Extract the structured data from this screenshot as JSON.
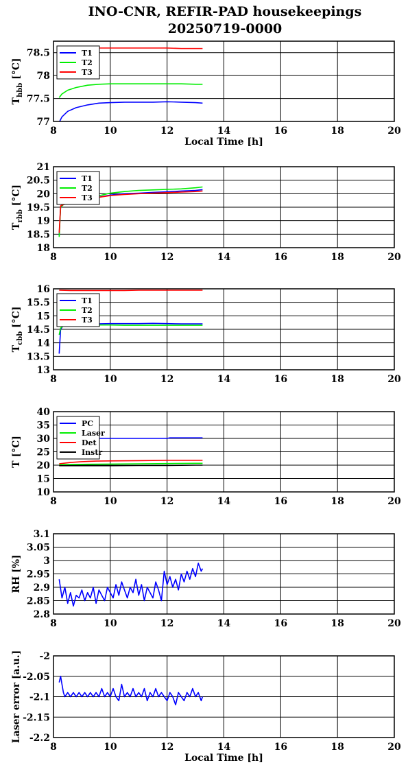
{
  "header": {
    "title_line1": "INO-CNR, REFIR-PAD housekeepings",
    "title_line2": "20250719-0000"
  },
  "colors": {
    "blue": "#0000ff",
    "green": "#00ee00",
    "red": "#ff0000",
    "black": "#000000"
  },
  "chart_data": [
    {
      "type": "line",
      "ylabel": "T_hbb [°C]",
      "ylabel_main": "T",
      "ylabel_sub": "hbb",
      "ylabel_unit": "[°C]",
      "xlabel": "Local Time [h]",
      "xlim": [
        8,
        20
      ],
      "ylim": [
        77,
        78.75
      ],
      "xticks": [
        "8",
        "10",
        "12",
        "14",
        "16",
        "18",
        "20"
      ],
      "yticks": [
        "77",
        "77.5",
        "78",
        "78.5"
      ],
      "grid": true,
      "legend_position": "top-left",
      "series": [
        {
          "name": "T1",
          "color": "#0000ff",
          "x": [
            8.2,
            8.3,
            8.5,
            8.8,
            9.2,
            9.6,
            10.0,
            10.5,
            11.0,
            11.5,
            12.0,
            12.5,
            13.0,
            13.25
          ],
          "y": [
            76.98,
            77.1,
            77.22,
            77.3,
            77.36,
            77.4,
            77.41,
            77.42,
            77.42,
            77.42,
            77.43,
            77.42,
            77.41,
            77.4
          ]
        },
        {
          "name": "T2",
          "color": "#00ee00",
          "x": [
            8.2,
            8.3,
            8.5,
            8.8,
            9.2,
            9.6,
            10.0,
            10.5,
            11.0,
            11.5,
            12.0,
            12.5,
            13.0,
            13.25
          ],
          "y": [
            77.52,
            77.6,
            77.68,
            77.74,
            77.79,
            77.81,
            77.82,
            77.82,
            77.82,
            77.82,
            77.82,
            77.82,
            77.81,
            77.81
          ]
        },
        {
          "name": "T3",
          "color": "#ff0000",
          "x": [
            8.2,
            9.0,
            9.6,
            10.0,
            10.5,
            11.0,
            11.5,
            12.0,
            12.5,
            13.0,
            13.25
          ],
          "y": [
            78.6,
            78.6,
            78.6,
            78.6,
            78.6,
            78.6,
            78.6,
            78.6,
            78.59,
            78.59,
            78.59
          ]
        }
      ]
    },
    {
      "type": "line",
      "ylabel": "T_rbb [°C]",
      "ylabel_main": "T",
      "ylabel_sub": "rbb",
      "ylabel_unit": "[°C]",
      "xlabel": "",
      "xlim": [
        8,
        20
      ],
      "ylim": [
        18,
        21
      ],
      "xticks": [
        "8",
        "10",
        "12",
        "14",
        "16",
        "18",
        "20"
      ],
      "yticks": [
        "18",
        "18.5",
        "19",
        "19.5",
        "20",
        "20.5",
        "21"
      ],
      "grid": true,
      "legend_position": "top-left",
      "series": [
        {
          "name": "T1",
          "color": "#0000ff",
          "x": [
            8.2,
            8.25,
            8.35,
            8.6,
            9.0,
            9.5,
            10.0,
            10.5,
            11.0,
            11.5,
            12.0,
            12.5,
            13.0,
            13.25
          ],
          "y": [
            18.45,
            19.5,
            19.6,
            19.65,
            19.72,
            19.85,
            19.95,
            20.0,
            20.02,
            20.05,
            20.07,
            20.1,
            20.12,
            20.15
          ]
        },
        {
          "name": "T2",
          "color": "#00ee00",
          "x": [
            8.2,
            8.25,
            8.35,
            8.6,
            9.0,
            9.5,
            10.0,
            10.5,
            11.0,
            11.5,
            12.0,
            12.5,
            13.0,
            13.25
          ],
          "y": [
            18.4,
            19.5,
            19.6,
            19.65,
            19.75,
            19.9,
            20.02,
            20.08,
            20.12,
            20.14,
            20.16,
            20.18,
            20.22,
            20.25
          ]
        },
        {
          "name": "T3",
          "color": "#ff0000",
          "x": [
            8.2,
            8.25,
            8.35,
            8.6,
            9.0,
            9.5,
            10.0,
            10.5,
            11.0,
            11.5,
            12.0,
            12.5,
            13.0,
            13.25
          ],
          "y": [
            18.55,
            19.55,
            19.6,
            19.65,
            19.72,
            19.85,
            19.93,
            19.97,
            20.0,
            20.02,
            20.04,
            20.06,
            20.08,
            20.1
          ]
        }
      ]
    },
    {
      "type": "line",
      "ylabel": "T_cbb [°C]",
      "ylabel_main": "T",
      "ylabel_sub": "cbb",
      "ylabel_unit": "[°C]",
      "xlabel": "",
      "xlim": [
        8,
        20
      ],
      "ylim": [
        13,
        16
      ],
      "xticks": [
        "8",
        "10",
        "12",
        "14",
        "16",
        "18",
        "20"
      ],
      "yticks": [
        "13",
        "13.5",
        "14",
        "14.5",
        "15",
        "15.5",
        "16"
      ],
      "grid": true,
      "legend_position": "top-left",
      "series": [
        {
          "name": "T1",
          "color": "#0000ff",
          "x": [
            8.2,
            8.25,
            8.35,
            8.6,
            9.0,
            9.5,
            10.0,
            10.5,
            11.0,
            11.5,
            12.0,
            12.5,
            13.0,
            13.25
          ],
          "y": [
            13.6,
            14.5,
            14.65,
            14.68,
            14.7,
            14.7,
            14.71,
            14.71,
            14.71,
            14.72,
            14.71,
            14.7,
            14.7,
            14.7
          ]
        },
        {
          "name": "T2",
          "color": "#00ee00",
          "x": [
            8.2,
            8.25,
            8.35,
            8.6,
            9.0,
            9.5,
            10.0,
            10.5,
            11.0,
            11.5,
            12.0,
            12.5,
            13.0,
            13.25
          ],
          "y": [
            14.3,
            14.55,
            14.62,
            14.64,
            14.66,
            14.66,
            14.66,
            14.65,
            14.65,
            14.65,
            14.65,
            14.65,
            14.65,
            14.65
          ]
        },
        {
          "name": "T3",
          "color": "#ff0000",
          "x": [
            8.2,
            8.6,
            9.0,
            9.5,
            10.0,
            10.5,
            11.0,
            11.5,
            12.0,
            12.5,
            13.0,
            13.25
          ],
          "y": [
            15.95,
            15.94,
            15.94,
            15.94,
            15.94,
            15.94,
            15.95,
            15.95,
            15.95,
            15.95,
            15.95,
            15.95
          ]
        }
      ]
    },
    {
      "type": "line",
      "ylabel": "T [°C]",
      "ylabel_main": "T",
      "ylabel_sub": "",
      "ylabel_unit": "[°C]",
      "xlabel": "",
      "xlim": [
        8,
        20
      ],
      "ylim": [
        10,
        40
      ],
      "xticks": [
        "8",
        "10",
        "12",
        "14",
        "16",
        "18",
        "20"
      ],
      "yticks": [
        "10",
        "15",
        "20",
        "25",
        "30",
        "35",
        "40"
      ],
      "grid": true,
      "legend_position": "top-left",
      "series": [
        {
          "name": "PC",
          "color": "#0000ff",
          "x": [
            8.2,
            9.0,
            10.0,
            11.0,
            12.0,
            12.1,
            13.0,
            13.25
          ],
          "y": [
            30.0,
            30.0,
            30.0,
            30.0,
            30.0,
            30.2,
            30.2,
            30.2
          ]
        },
        {
          "name": "Laser",
          "color": "#00ee00",
          "x": [
            8.2,
            9.0,
            10.0,
            11.0,
            12.0,
            13.0,
            13.25
          ],
          "y": [
            20.2,
            20.3,
            20.4,
            20.5,
            20.6,
            20.7,
            20.7
          ]
        },
        {
          "name": "Det",
          "color": "#ff0000",
          "x": [
            8.2,
            8.6,
            9.0,
            9.5,
            10.0,
            11.0,
            12.0,
            13.0,
            13.25
          ],
          "y": [
            20.5,
            21.0,
            21.3,
            21.5,
            21.6,
            21.7,
            21.8,
            21.8,
            21.8
          ]
        },
        {
          "name": "Instr",
          "color": "#000000",
          "x": [
            8.2,
            9.0,
            10.0,
            11.0,
            12.0,
            13.0,
            13.25
          ],
          "y": [
            19.8,
            19.8,
            19.8,
            19.9,
            19.9,
            20.0,
            20.0
          ]
        }
      ]
    },
    {
      "type": "line",
      "ylabel": "RH [%]",
      "ylabel_main": "RH [%]",
      "ylabel_sub": "",
      "ylabel_unit": "",
      "xlabel": "",
      "xlim": [
        8,
        20
      ],
      "ylim": [
        2.8,
        3.1
      ],
      "xticks": [
        "8",
        "10",
        "12",
        "14",
        "16",
        "18",
        "20"
      ],
      "yticks": [
        "2.8",
        "2.85",
        "2.9",
        "2.95",
        "3",
        "3.05",
        "3.1"
      ],
      "grid": true,
      "legend_position": "none",
      "series": [
        {
          "name": "",
          "color": "#0000ff",
          "x": [
            8.2,
            8.3,
            8.4,
            8.5,
            8.6,
            8.7,
            8.8,
            8.9,
            9.0,
            9.1,
            9.2,
            9.3,
            9.4,
            9.5,
            9.6,
            9.7,
            9.8,
            9.9,
            10.0,
            10.1,
            10.2,
            10.3,
            10.4,
            10.5,
            10.6,
            10.7,
            10.8,
            10.9,
            11.0,
            11.1,
            11.2,
            11.3,
            11.4,
            11.5,
            11.6,
            11.7,
            11.8,
            11.9,
            12.0,
            12.1,
            12.2,
            12.3,
            12.4,
            12.5,
            12.6,
            12.7,
            12.8,
            12.9,
            13.0,
            13.1,
            13.2,
            13.25
          ],
          "y": [
            2.93,
            2.86,
            2.9,
            2.84,
            2.88,
            2.83,
            2.87,
            2.86,
            2.89,
            2.85,
            2.88,
            2.86,
            2.9,
            2.84,
            2.89,
            2.87,
            2.85,
            2.9,
            2.88,
            2.86,
            2.91,
            2.87,
            2.92,
            2.89,
            2.86,
            2.9,
            2.88,
            2.93,
            2.87,
            2.91,
            2.85,
            2.9,
            2.88,
            2.86,
            2.92,
            2.89,
            2.85,
            2.96,
            2.91,
            2.94,
            2.9,
            2.93,
            2.89,
            2.95,
            2.92,
            2.96,
            2.93,
            2.97,
            2.94,
            2.99,
            2.96,
            2.97
          ]
        }
      ]
    },
    {
      "type": "line",
      "ylabel": "Laser error [a.u.]",
      "ylabel_main": "Laser error [a.u.]",
      "ylabel_sub": "",
      "ylabel_unit": "",
      "xlabel": "Local Time [h]",
      "xlim": [
        8,
        20
      ],
      "ylim": [
        -2.2,
        -2
      ],
      "xticks": [
        "8",
        "10",
        "12",
        "14",
        "16",
        "18",
        "20"
      ],
      "yticks": [
        "-2.2",
        "-2.15",
        "-2.1",
        "-2.05",
        "-2"
      ],
      "grid": true,
      "legend_position": "none",
      "series": [
        {
          "name": "",
          "color": "#0000ff",
          "x": [
            8.2,
            8.25,
            8.3,
            8.35,
            8.4,
            8.5,
            8.6,
            8.7,
            8.8,
            8.9,
            9.0,
            9.1,
            9.2,
            9.3,
            9.4,
            9.5,
            9.6,
            9.7,
            9.8,
            9.9,
            10.0,
            10.1,
            10.2,
            10.3,
            10.4,
            10.5,
            10.6,
            10.7,
            10.8,
            10.9,
            11.0,
            11.1,
            11.2,
            11.3,
            11.4,
            11.5,
            11.6,
            11.7,
            11.8,
            11.9,
            12.0,
            12.1,
            12.2,
            12.3,
            12.4,
            12.5,
            12.6,
            12.7,
            12.8,
            12.9,
            13.0,
            13.1,
            13.2,
            13.25
          ],
          "y": [
            -2.065,
            -2.05,
            -2.07,
            -2.09,
            -2.1,
            -2.09,
            -2.1,
            -2.09,
            -2.1,
            -2.09,
            -2.1,
            -2.09,
            -2.1,
            -2.09,
            -2.1,
            -2.09,
            -2.1,
            -2.08,
            -2.1,
            -2.09,
            -2.1,
            -2.08,
            -2.1,
            -2.11,
            -2.07,
            -2.1,
            -2.09,
            -2.1,
            -2.08,
            -2.1,
            -2.09,
            -2.1,
            -2.08,
            -2.11,
            -2.09,
            -2.1,
            -2.08,
            -2.1,
            -2.09,
            -2.1,
            -2.11,
            -2.09,
            -2.1,
            -2.12,
            -2.09,
            -2.1,
            -2.11,
            -2.09,
            -2.1,
            -2.08,
            -2.1,
            -2.09,
            -2.11,
            -2.1
          ]
        }
      ]
    }
  ]
}
